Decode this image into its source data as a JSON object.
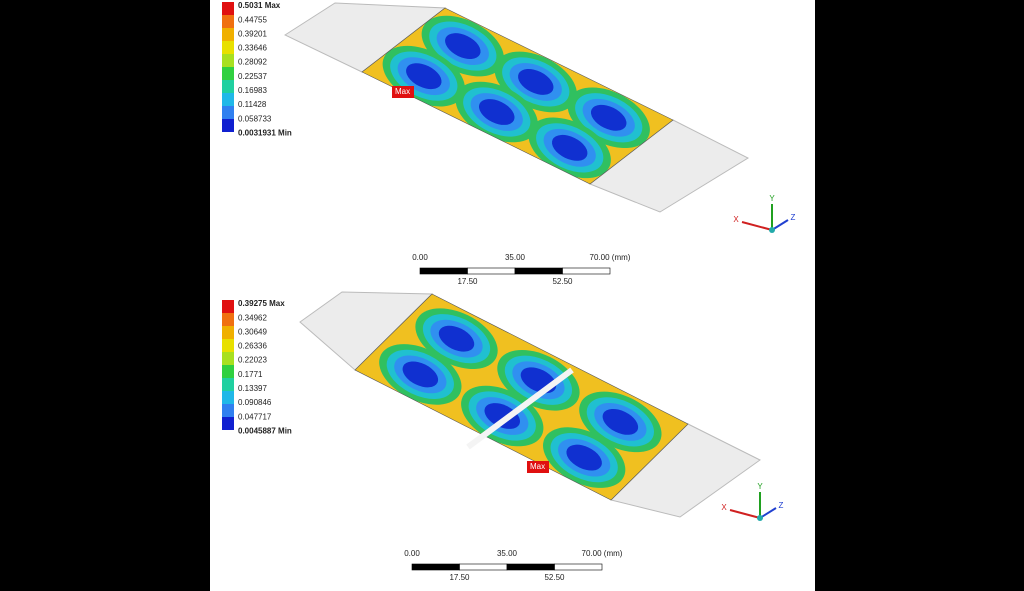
{
  "panels": [
    {
      "legend": {
        "max": "0.5031 Max",
        "levels": [
          "0.44755",
          "0.39201",
          "0.33646",
          "0.28092",
          "0.22537",
          "0.16983",
          "0.11428",
          "0.058733"
        ],
        "min": "0.0031931 Min"
      },
      "probe": "Max",
      "scale": {
        "top": [
          "0.00",
          "35.00",
          "70.00 (mm)"
        ],
        "bottom": [
          "17.50",
          "52.50"
        ]
      },
      "triad": [
        "X",
        "Y",
        "Z"
      ]
    },
    {
      "legend": {
        "max": "0.39275 Max",
        "levels": [
          "0.34962",
          "0.30649",
          "0.26336",
          "0.22023",
          "0.1771",
          "0.13397",
          "0.090846",
          "0.047717"
        ],
        "min": "0.0045887 Min"
      },
      "probe": "Max",
      "scale": {
        "top": [
          "0.00",
          "35.00",
          "70.00 (mm)"
        ],
        "bottom": [
          "17.50",
          "52.50"
        ]
      },
      "triad": [
        "X",
        "Y",
        "Z"
      ]
    }
  ]
}
